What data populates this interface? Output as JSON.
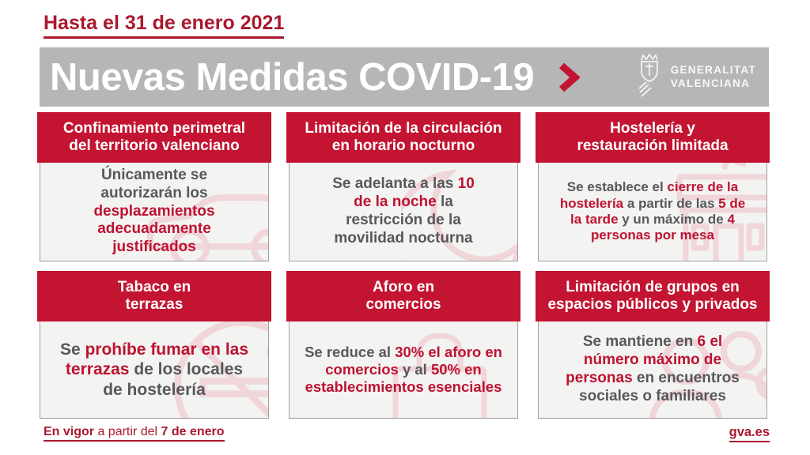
{
  "header": {
    "deadline": "Hasta el 31 de enero 2021",
    "banner_title": "Nuevas Medidas COVID-19",
    "logo": {
      "line1": "GENERALITAT",
      "line2": "VALENCIANA"
    }
  },
  "colors": {
    "crimson": "#c31432",
    "text_red": "#bd1330",
    "dark_red": "#aa182d",
    "banner_gray": "#b6b6b7",
    "body_bg": "#f3f3f2",
    "body_border": "#9e9e9e",
    "gray_text": "#57585a",
    "icon_pink": "#f0d5d9"
  },
  "cards": [
    {
      "title": "Confinamiento perimetral\ndel territorio valenciano",
      "icon": "car-icon",
      "body": [
        {
          "text": "Únicamente se autorizarán los ",
          "cls": ""
        },
        {
          "text": "desplazamientos adecuadamente justificados",
          "cls": "em"
        }
      ]
    },
    {
      "title": "Limitación de la circulación\nen horario nocturno",
      "icon": "moon-icon",
      "body": [
        {
          "text": "Se adelanta a las ",
          "cls": ""
        },
        {
          "text": "10 de la noche",
          "cls": "em"
        },
        {
          "text": " la restricción de la movilidad nocturna",
          "cls": ""
        }
      ]
    },
    {
      "title": "Hostelería y\nrestauración limitada",
      "icon": "storefront-icon",
      "body": [
        {
          "text": "Se establece el ",
          "cls": ""
        },
        {
          "text": "cierre de la hostelería",
          "cls": "em"
        },
        {
          "text": " a partir de las ",
          "cls": ""
        },
        {
          "text": "5 de la tarde",
          "cls": "em"
        },
        {
          "text": " y un máximo de ",
          "cls": ""
        },
        {
          "text": "4 personas por mesa",
          "cls": "em"
        }
      ]
    },
    {
      "title": "Tabaco en\nterrazas",
      "icon": "no-smoking-icon",
      "body": [
        {
          "text": "Se ",
          "cls": ""
        },
        {
          "text": "prohíbe fumar en las terrazas",
          "cls": "em"
        },
        {
          "text": " de los locales de hostelería",
          "cls": ""
        }
      ]
    },
    {
      "title": "Aforo en\ncomercios",
      "icon": "shopping-bag-icon",
      "body": [
        {
          "text": "Se reduce al ",
          "cls": ""
        },
        {
          "text": "30% el aforo en comercios",
          "cls": "em"
        },
        {
          "text": " y al ",
          "cls": ""
        },
        {
          "text": "50% en establecimientos esenciales",
          "cls": "em"
        }
      ]
    },
    {
      "title": "Limitación de grupos en\nespacios públicos y privados",
      "icon": "people-icon",
      "body": [
        {
          "text": "Se mantiene en ",
          "cls": ""
        },
        {
          "text": "6 el número máximo de personas",
          "cls": "em"
        },
        {
          "text": " en encuentros sociales o familiares",
          "cls": ""
        }
      ]
    }
  ],
  "footer": {
    "effective": [
      {
        "text": "En vigor",
        "cls": "b"
      },
      {
        "text": " a partir del ",
        "cls": ""
      },
      {
        "text": "7 de enero",
        "cls": "b"
      }
    ],
    "website": "gva.es"
  }
}
